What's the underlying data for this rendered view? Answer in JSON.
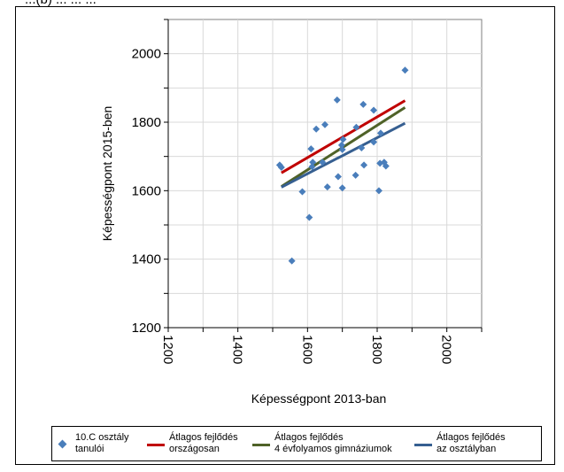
{
  "header_fragment": "...(b) ... ... ...",
  "chart_data": {
    "type": "scatter",
    "xlabel": "Képességpont 2013-ban",
    "ylabel": "Képességpont 2015-ben",
    "xlim": [
      1200,
      2100
    ],
    "ylim": [
      1200,
      2100
    ],
    "xticks": [
      1200,
      1400,
      1600,
      1800,
      2000
    ],
    "yticks": [
      1200,
      1400,
      1600,
      1800,
      2000
    ],
    "grid": true,
    "legend_position": "bottom",
    "colors": {
      "points": "#4a7ebb",
      "national": "#c00000",
      "gymnasium": "#4f6228",
      "class": "#365f91"
    },
    "series": [
      {
        "name": "10.C osztály tanulói",
        "type": "scatter",
        "color": "#4a7ebb",
        "points": [
          {
            "x": 1520,
            "y": 1675
          },
          {
            "x": 1525,
            "y": 1668
          },
          {
            "x": 1555,
            "y": 1395
          },
          {
            "x": 1585,
            "y": 1597
          },
          {
            "x": 1605,
            "y": 1522
          },
          {
            "x": 1610,
            "y": 1722
          },
          {
            "x": 1613,
            "y": 1670
          },
          {
            "x": 1615,
            "y": 1683
          },
          {
            "x": 1625,
            "y": 1780
          },
          {
            "x": 1643,
            "y": 1683
          },
          {
            "x": 1650,
            "y": 1793
          },
          {
            "x": 1657,
            "y": 1611
          },
          {
            "x": 1685,
            "y": 1865
          },
          {
            "x": 1688,
            "y": 1641
          },
          {
            "x": 1698,
            "y": 1733
          },
          {
            "x": 1700,
            "y": 1608
          },
          {
            "x": 1700,
            "y": 1720
          },
          {
            "x": 1702,
            "y": 1750
          },
          {
            "x": 1738,
            "y": 1645
          },
          {
            "x": 1740,
            "y": 1785
          },
          {
            "x": 1755,
            "y": 1725
          },
          {
            "x": 1760,
            "y": 1852
          },
          {
            "x": 1762,
            "y": 1675
          },
          {
            "x": 1790,
            "y": 1835
          },
          {
            "x": 1790,
            "y": 1742
          },
          {
            "x": 1805,
            "y": 1600
          },
          {
            "x": 1808,
            "y": 1680
          },
          {
            "x": 1810,
            "y": 1768
          },
          {
            "x": 1820,
            "y": 1683
          },
          {
            "x": 1825,
            "y": 1672
          },
          {
            "x": 1880,
            "y": 1952
          }
        ]
      },
      {
        "name": "Átlagos fejlődés országosan",
        "type": "line",
        "color": "#c00000",
        "points": [
          {
            "x": 1525,
            "y": 1652
          },
          {
            "x": 1880,
            "y": 1863
          }
        ]
      },
      {
        "name": "Átlagos fejlődés 4 évfolyamos gimnáziumok",
        "type": "line",
        "color": "#4f6228",
        "points": [
          {
            "x": 1525,
            "y": 1612
          },
          {
            "x": 1880,
            "y": 1843
          }
        ]
      },
      {
        "name": "Átlagos fejlődés az osztályban",
        "type": "line",
        "color": "#365f91",
        "points": [
          {
            "x": 1525,
            "y": 1610
          },
          {
            "x": 1880,
            "y": 1797
          }
        ]
      }
    ]
  },
  "legend": [
    {
      "line1": "10.C osztály",
      "line2": "tanulói"
    },
    {
      "line1": "Átlagos fejlődés",
      "line2": "országosan"
    },
    {
      "line1": "Átlagos fejlődés",
      "line2": "4 évfolyamos gimnáziumok"
    },
    {
      "line1": "Átlagos fejlődés",
      "line2": "az osztályban"
    }
  ]
}
